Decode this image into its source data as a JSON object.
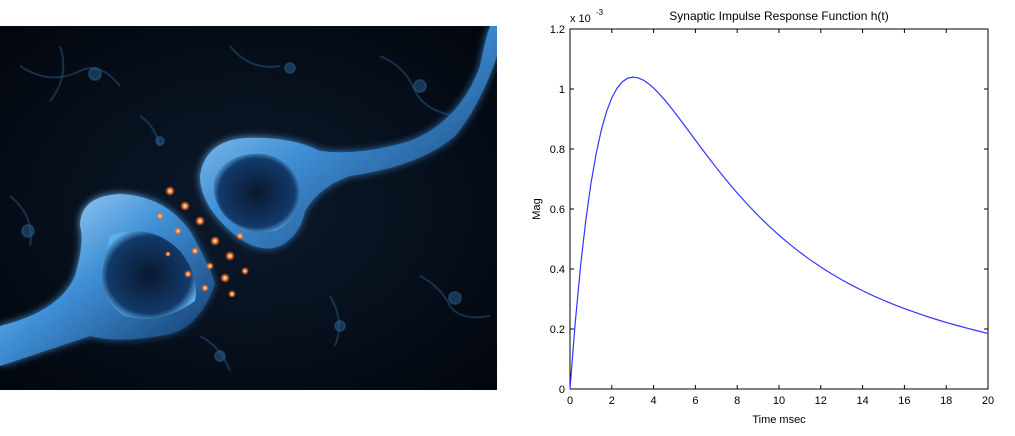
{
  "chart_data": {
    "type": "line",
    "title": "Synaptic Impulse Response Function h(t)",
    "xlabel": "Time msec",
    "ylabel": "Mag",
    "y_multiplier_label": "x 10",
    "y_multiplier_exponent": "-3",
    "xlim": [
      0,
      20
    ],
    "ylim": [
      0,
      1.2
    ],
    "x_ticks": [
      0,
      2,
      4,
      6,
      8,
      10,
      12,
      14,
      16,
      18,
      20
    ],
    "y_ticks": [
      0,
      0.2,
      0.4,
      0.6,
      0.8,
      1,
      1.2
    ],
    "grid": false,
    "series": [
      {
        "color": "#3333ff",
        "x": [
          0,
          0.25,
          0.5,
          0.75,
          1,
          1.25,
          1.5,
          1.75,
          2,
          2.25,
          2.5,
          2.75,
          3,
          3.25,
          3.5,
          3.75,
          4,
          4.25,
          4.5,
          4.75,
          5,
          5.5,
          6,
          6.5,
          7,
          7.5,
          8,
          8.5,
          9,
          9.5,
          10,
          10.5,
          11,
          11.5,
          12,
          12.5,
          13,
          13.5,
          14,
          14.5,
          15,
          15.5,
          16,
          16.5,
          17,
          17.5,
          18,
          18.5,
          19,
          19.5,
          20
        ],
        "values": [
          0,
          0.2212,
          0.4061,
          0.559,
          0.6839,
          0.7843,
          0.8637,
          0.9248,
          0.9704,
          1.0027,
          1.0238,
          1.0356,
          1.0396,
          1.0373,
          1.0298,
          1.0181,
          1.0031,
          0.9855,
          0.966,
          0.9449,
          0.9228,
          0.8766,
          0.8295,
          0.7829,
          0.7377,
          0.6944,
          0.6533,
          0.6146,
          0.5783,
          0.5443,
          0.5126,
          0.4831,
          0.4557,
          0.4302,
          0.4066,
          0.3846,
          0.3642,
          0.3452,
          0.3275,
          0.3111,
          0.2958,
          0.2815,
          0.2681,
          0.2555,
          0.2436,
          0.2325,
          0.222,
          0.2121,
          0.2027,
          0.1937,
          0.1852
        ]
      }
    ]
  },
  "colors": {
    "line": "#3333ff",
    "synapse_glow": "#7ac8ff",
    "neurotransmitter": "#ff7a3a"
  }
}
